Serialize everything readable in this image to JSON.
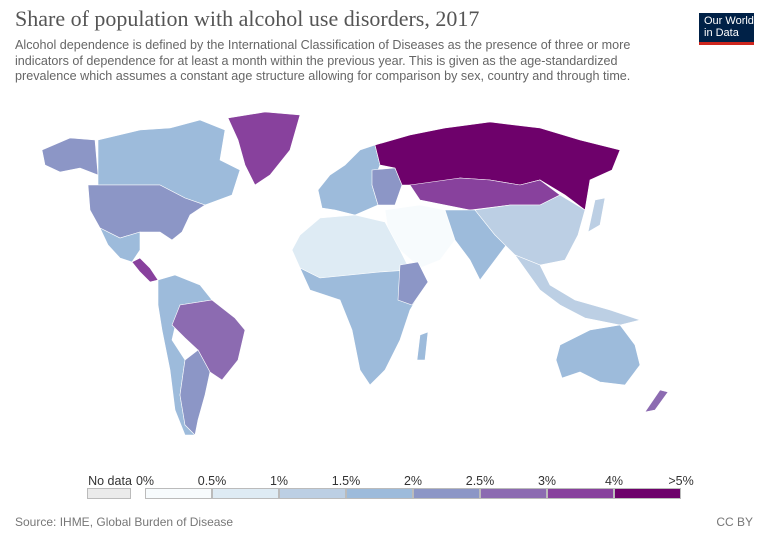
{
  "title": "Share of population with alcohol use disorders, 2017",
  "subtitle": "Alcohol dependence is defined by the International Classification of Diseases as the presence of three or more indicators of dependence for at least a month within the previous year. This is given as the age-standardized prevalence which assumes a constant age structure allowing for comparison by sex, country and through time.",
  "logo": {
    "line1": "Our World",
    "line2": "in Data"
  },
  "legend": {
    "no_data_label": "No data",
    "no_data_color": "#ebebeb",
    "ticks": [
      "0%",
      "0.5%",
      "1%",
      "1.5%",
      "2%",
      "2.5%",
      "3%",
      "4%",
      ">5%"
    ],
    "colors": [
      "#f7fbfd",
      "#deebf4",
      "#bccfe4",
      "#9dbbdb",
      "#8c96c6",
      "#8c6bb1",
      "#88419d",
      "#6e016b"
    ]
  },
  "source": "Source: IHME, Global Burden of Disease",
  "license": "CC BY"
}
